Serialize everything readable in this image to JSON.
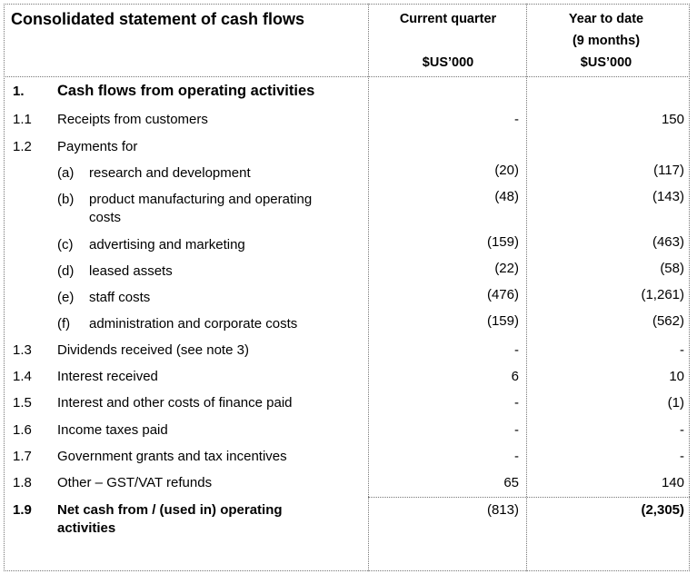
{
  "title": "Consolidated statement of cash flows",
  "headers": {
    "current_quarter": [
      "Current quarter",
      "",
      "$US’000"
    ],
    "year_to_date": [
      "Year to date",
      "(9 months)",
      "$US’000"
    ]
  },
  "rows": [
    {
      "num": "1.",
      "label": "Cash flows from operating activities",
      "bold": true,
      "cq": "",
      "ytd": ""
    },
    {
      "num": "1.1",
      "label": "Receipts from customers",
      "cq": "-",
      "ytd": "150"
    },
    {
      "num": "1.2",
      "label": "Payments for",
      "cq": "",
      "ytd": ""
    },
    {
      "letter": "(a)",
      "label": "research and development",
      "cq": "(20)",
      "ytd": "(117)"
    },
    {
      "letter": "(b)",
      "label": "product manufacturing and operating",
      "label2": "costs",
      "cq": "(48)",
      "ytd": "(143)"
    },
    {
      "letter": "(c)",
      "label": "advertising and marketing",
      "cq": "(159)",
      "ytd": "(463)"
    },
    {
      "letter": "(d)",
      "label": "leased assets",
      "cq": "(22)",
      "ytd": "(58)"
    },
    {
      "letter": "(e)",
      "label": "staff costs",
      "cq": "(476)",
      "ytd": "(1,261)"
    },
    {
      "letter": "(f)",
      "label": "administration and corporate costs",
      "cq": "(159)",
      "ytd": "(562)"
    },
    {
      "num": "1.3",
      "label": "Dividends received (see note 3)",
      "cq": "-",
      "ytd": "-"
    },
    {
      "num": "1.4",
      "label": "Interest received",
      "cq": "6",
      "ytd": "10"
    },
    {
      "num": "1.5",
      "label": "Interest and other costs of finance paid",
      "cq": "-",
      "ytd": "(1)"
    },
    {
      "num": "1.6",
      "label": "Income taxes paid",
      "cq": "-",
      "ytd": "-"
    },
    {
      "num": "1.7",
      "label": "Government grants and tax incentives",
      "cq": "-",
      "ytd": "-"
    },
    {
      "num": "1.8",
      "label": "Other – GST/VAT refunds",
      "cq": "65",
      "ytd": "140"
    },
    {
      "num": "1.9",
      "label": "Net cash from / (used in) operating",
      "label2": "activities",
      "bold": true,
      "cq": "(813)",
      "ytd": "(2,305)",
      "ytd_bold": true
    }
  ]
}
